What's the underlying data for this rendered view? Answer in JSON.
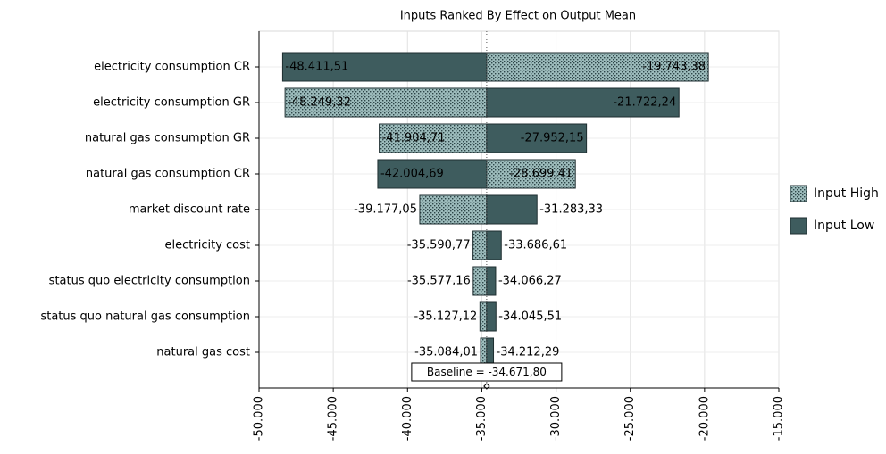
{
  "chart_data": {
    "type": "tornado",
    "title": "Inputs Ranked By Effect on Output Mean",
    "categories": [
      "electricity consumption CR",
      "electricity consumption GR",
      "natural gas consumption GR",
      "natural gas consumption CR",
      "market discount rate",
      "electricity cost",
      "status quo electricity consumption",
      "status quo natural gas consumption",
      "natural gas cost"
    ],
    "series": [
      {
        "name": "Input High",
        "color": "#8fb0b0",
        "pattern": "dots",
        "values": [
          -19743.38,
          -48249.32,
          -41904.71,
          -28699.41,
          -39177.05,
          -35590.77,
          -35577.16,
          -35127.12,
          -35084.01
        ],
        "value_labels": [
          "-19.743,38",
          "-48.249,32",
          "-41.904,71",
          "-28.699,41",
          "-39.177,05",
          "-35.590,77",
          "-35.577,16",
          "-35.127,12",
          "-35.084,01"
        ]
      },
      {
        "name": "Input Low",
        "color": "#3e5c5e",
        "values": [
          -48411.51,
          -21722.24,
          -27952.15,
          -42004.69,
          -31283.33,
          -33686.61,
          -34066.27,
          -34045.51,
          -34212.29
        ],
        "value_labels": [
          "-48.411,51",
          "-21.722,24",
          "-27.952,15",
          "-42.004,69",
          "-31.283,33",
          "-33.686,61",
          "-34.066,27",
          "-34.045,51",
          "-34.212,29"
        ]
      }
    ],
    "baseline": {
      "value": -34671.8,
      "label": "Baseline = -34.671,80"
    },
    "xlim": [
      -50000,
      -15000
    ],
    "xticks": [
      {
        "value": -50000,
        "label": "-50.000"
      },
      {
        "value": -45000,
        "label": "-45.000"
      },
      {
        "value": -40000,
        "label": "-40.000"
      },
      {
        "value": -35000,
        "label": "-35.000"
      },
      {
        "value": -30000,
        "label": "-30.000"
      },
      {
        "value": -25000,
        "label": "-25.000"
      },
      {
        "value": -20000,
        "label": "-20.000"
      },
      {
        "value": -15000,
        "label": "-15.000"
      }
    ],
    "grid": true,
    "legend": "right"
  }
}
